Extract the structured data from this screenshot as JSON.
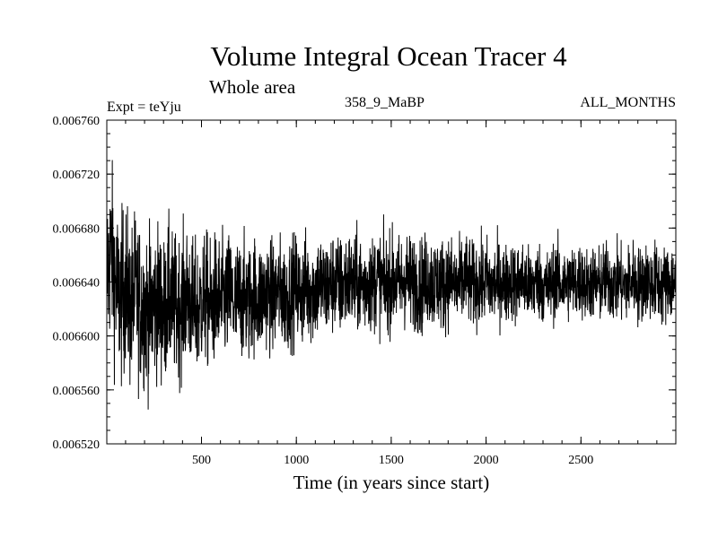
{
  "chart_data": {
    "type": "line",
    "title": "Volume Integral Ocean Tracer 4",
    "subtitle": "Whole area",
    "experiment_label": "Expt = teYju",
    "period_label": "358_9_MaBP",
    "months_label": "ALL_MONTHS",
    "xlabel": "Time (in years since start)",
    "ylabel": "",
    "xlim": [
      1,
      3000
    ],
    "ylim": [
      0.00652,
      0.00676
    ],
    "x_ticks": [
      500,
      1000,
      1500,
      2000,
      2500
    ],
    "x_tick_labels": [
      "500",
      "1000",
      "1500",
      "2000",
      "2500"
    ],
    "y_ticks": [
      0.00652,
      0.00656,
      0.0066,
      0.00664,
      0.00668,
      0.00672,
      0.00676
    ],
    "y_tick_labels": [
      "0.006520",
      "0.006560",
      "0.006600",
      "0.006640",
      "0.006680",
      "0.006720",
      "0.006760"
    ],
    "grid": false,
    "series": [
      {
        "name": "Volume Integral Ocean Tracer 4",
        "color": "#000000",
        "x_start": 1,
        "x_step": 25,
        "values": [
          0.006645,
          0.006664,
          0.006633,
          0.006627,
          0.006638,
          0.006619,
          0.006634,
          0.006623,
          0.006621,
          0.006618,
          0.006624,
          0.006627,
          0.006616,
          0.00663,
          0.006623,
          0.00662,
          0.006625,
          0.006631,
          0.006622,
          0.006618,
          0.006626,
          0.006628,
          0.00662,
          0.00663,
          0.006625,
          0.006627,
          0.006631,
          0.006622,
          0.006629,
          0.006627,
          0.006624,
          0.006632,
          0.006627,
          0.006631,
          0.006633,
          0.006627,
          0.006635,
          0.00663,
          0.006629,
          0.006634,
          0.006636,
          0.00663,
          0.006638,
          0.006633,
          0.006635,
          0.00664,
          0.006634,
          0.006637,
          0.006641,
          0.006636,
          0.006638,
          0.006642,
          0.006637,
          0.00664,
          0.006636,
          0.006641,
          0.006638,
          0.006643,
          0.006639,
          0.006637,
          0.006642,
          0.00664,
          0.006638,
          0.006644,
          0.006639,
          0.006641,
          0.006636,
          0.00664,
          0.006643,
          0.006638,
          0.006641,
          0.006637,
          0.006642,
          0.006639,
          0.006636,
          0.006641,
          0.006643,
          0.006637,
          0.00664,
          0.006638,
          0.006642,
          0.006636,
          0.006639,
          0.006641,
          0.006637,
          0.006643,
          0.006638,
          0.00664,
          0.006642,
          0.006636,
          0.006639,
          0.006641,
          0.006638,
          0.006635,
          0.00664,
          0.006642,
          0.006637,
          0.006639,
          0.006641,
          0.006638,
          0.006643,
          0.006636,
          0.00664,
          0.006639,
          0.006637,
          0.006642,
          0.00664,
          0.006638,
          0.006641,
          0.006636,
          0.006639,
          0.006643,
          0.006637,
          0.00664,
          0.006642,
          0.006638,
          0.006641,
          0.006636,
          0.006639,
          0.00664
        ]
      }
    ],
    "variability_amplitude": [
      7e-05,
      5.5e-05,
      4.5e-05,
      4e-05,
      3.8e-05,
      3.2e-05,
      3e-05,
      3.2e-05
    ]
  }
}
